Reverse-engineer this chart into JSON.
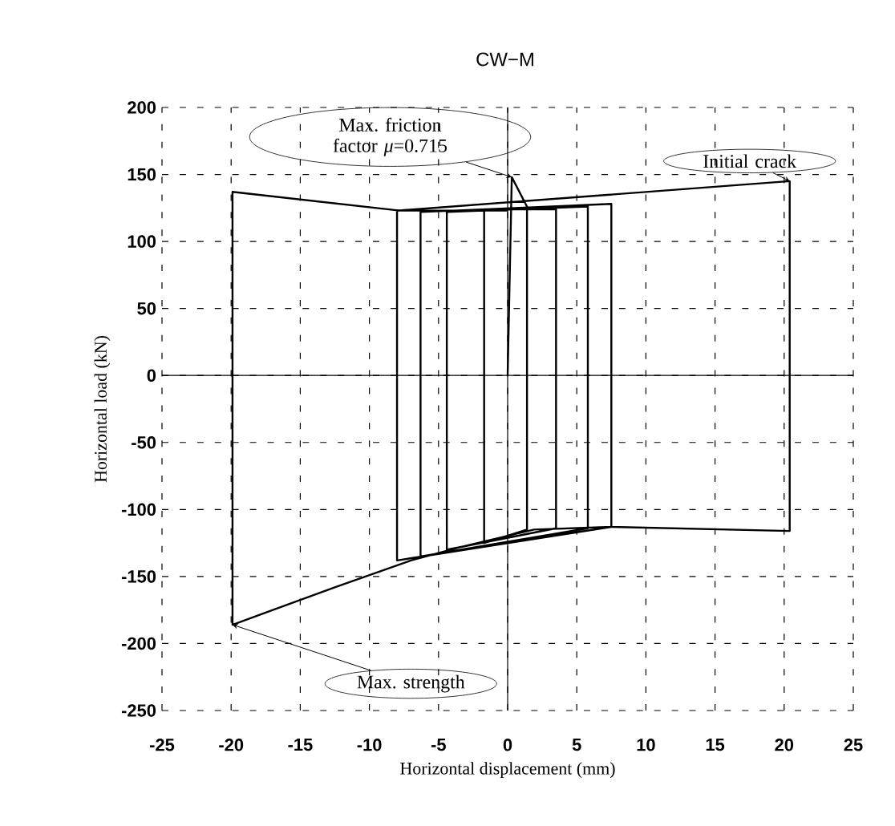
{
  "chart_data": {
    "type": "line",
    "title": "CW−M",
    "xlabel": "Horizontal displacement (mm)",
    "ylabel": "Horizontal load (kN)",
    "xlim": [
      -25,
      25
    ],
    "ylim": [
      -250,
      200
    ],
    "xticks": [
      -25,
      -20,
      -15,
      -10,
      -5,
      0,
      5,
      10,
      15,
      20,
      25
    ],
    "yticks": [
      -250,
      -200,
      -150,
      -100,
      -50,
      0,
      50,
      100,
      150,
      200
    ],
    "grid": true,
    "series": [
      {
        "color": "#000000",
        "x": [
          0,
          0.3,
          1.4,
          1.4,
          -1.7,
          -1.7,
          3.5,
          3.5,
          -4.4,
          -4.4,
          5.8,
          5.8,
          -6.3,
          -6.3,
          7.5,
          7.5,
          -8.0,
          -8.0,
          20.4,
          20.4,
          7.5,
          1.9,
          -3.4,
          -7.0,
          -12.5,
          -19.9,
          -19.9,
          -7.8,
          0
        ],
        "values": [
          0,
          148,
          126,
          -115,
          -125,
          124,
          124,
          -114,
          -130,
          122,
          126,
          -114,
          -135,
          122,
          128,
          -113,
          -138,
          123,
          145,
          -116,
          -113,
          -115,
          -128,
          -138,
          -158,
          -186,
          137,
          123,
          123
        ]
      }
    ],
    "annotations": [
      {
        "text": "Max. friction factor *μ*=0.715",
        "x": 0.3,
        "y": 148
      },
      {
        "text": "Initial crack",
        "x": 20.4,
        "y": 145
      },
      {
        "text": "Max. strength",
        "x": -19.9,
        "y": -186
      }
    ]
  }
}
